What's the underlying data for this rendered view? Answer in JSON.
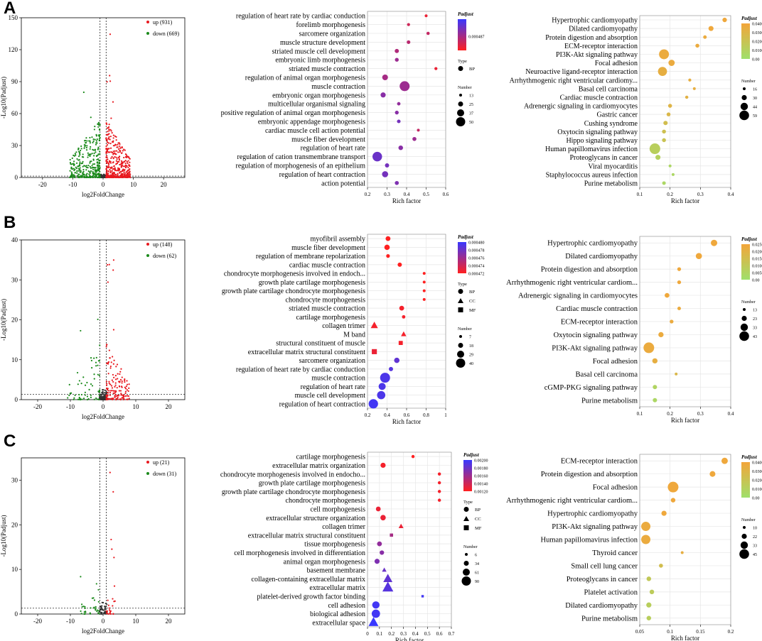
{
  "figure": {
    "panel_labels": [
      "A",
      "B",
      "C"
    ]
  },
  "chart_data": [
    {
      "panel": "A",
      "type": "scatter",
      "subtype": "volcano",
      "xlabel": "log2FoldChange",
      "ylabel": "-Log10(Padjust)",
      "xlim": [
        -27,
        27
      ],
      "ylim": [
        0,
        150
      ],
      "xticks": [
        -20,
        -10,
        0,
        10,
        20
      ],
      "yticks": [
        0,
        30,
        60,
        90,
        120,
        150
      ],
      "threshold_x": [
        -1,
        1
      ],
      "threshold_y": 1.3,
      "legend": [
        {
          "label": "up (931)",
          "color": "#e8191f"
        },
        {
          "label": "down (669)",
          "color": "#1b8a1b"
        }
      ],
      "up_count": 931,
      "down_count": 669,
      "cloud": {
        "up_xmax": 9,
        "down_xmin": -11,
        "ymax": 55
      }
    },
    {
      "panel": "A",
      "type": "scatter",
      "subtype": "go-bubble",
      "xlabel": "Rich factor",
      "xlim": [
        0.2,
        0.6
      ],
      "xticks": [
        0.2,
        0.3,
        0.4,
        0.5,
        0.6
      ],
      "terms": [
        "regulation of heart rate by cardiac conduction",
        "forelimb morphogenesis",
        "sarcomere organization",
        "muscle structure development",
        "striated muscle cell development",
        "embryonic limb morphogenesis",
        "striated muscle contraction",
        "regulation of animal organ morphogenesis",
        "muscle contraction",
        "embryonic organ morphogenesis",
        "multicellular organismal signaling",
        "positive regulation of animal organ morphogenesis",
        "embryonic appendage morphogenesis",
        "cardiac muscle cell action potential",
        "muscle fiber development",
        "regulation of heart rate",
        "regulation of cation transmembrane transport",
        "regulation of morphogenesis of an epithelium",
        "regulation of heart contraction",
        "action potential"
      ],
      "x": [
        0.5,
        0.41,
        0.51,
        0.41,
        0.35,
        0.35,
        0.55,
        0.29,
        0.39,
        0.28,
        0.36,
        0.35,
        0.36,
        0.46,
        0.44,
        0.37,
        0.25,
        0.3,
        0.29,
        0.35
      ],
      "size": [
        13,
        14,
        15,
        17,
        20,
        18,
        14,
        28,
        50,
        25,
        16,
        18,
        17,
        13,
        19,
        22,
        48,
        20,
        30,
        19
      ],
      "shape": [
        "BP",
        "BP",
        "BP",
        "BP",
        "BP",
        "BP",
        "BP",
        "BP",
        "BP",
        "BP",
        "BP",
        "BP",
        "BP",
        "BP",
        "BP",
        "BP",
        "BP",
        "BP",
        "BP",
        "BP"
      ],
      "color": [
        0.1,
        0.25,
        0.3,
        0.35,
        0.4,
        0.5,
        0.1,
        0.45,
        0.5,
        0.6,
        0.55,
        0.6,
        0.7,
        0.3,
        0.5,
        0.6,
        0.75,
        0.7,
        0.7,
        0.65
      ],
      "colorbar": {
        "title": "Padjust",
        "labels": [
          "0.000487"
        ],
        "top": "#3838ff",
        "bottom": "#ff2020"
      },
      "type_legend": {
        "title": "Type",
        "items": [
          "BP"
        ]
      },
      "size_legend": {
        "title": "Number",
        "values": [
          13,
          25,
          37,
          50
        ]
      }
    },
    {
      "panel": "A",
      "type": "scatter",
      "subtype": "kegg-bubble",
      "xlabel": "Rich factor",
      "xlim": [
        0.1,
        0.4
      ],
      "xticks": [
        0.1,
        0.2,
        0.3,
        0.4
      ],
      "terms": [
        "Hypertrophic cardiomyopathy",
        "Dilated cardiomyopathy",
        "Protein digestion and absorption",
        "ECM-receptor interaction",
        "PI3K-Akt signaling pathway",
        "Focal adhesion",
        "Neuroactive ligand-receptor interaction",
        "Arrhythmogenic right ventricular cardiomy...",
        "Basal cell carcinoma",
        "Cardiac muscle contraction",
        "Adrenergic signaling in cardiomyocytes",
        "Gastric cancer",
        "Cushing syndrome",
        "Oxytocin signaling pathway",
        "Hippo signaling pathway",
        "Human papillomavirus infection",
        "Proteoglycans in cancer",
        "Viral myocarditis",
        "Staphylococcus aureus infection",
        "Purine metabolism"
      ],
      "x": [
        0.38,
        0.335,
        0.315,
        0.29,
        0.18,
        0.205,
        0.175,
        0.265,
        0.28,
        0.255,
        0.2,
        0.195,
        0.185,
        0.18,
        0.18,
        0.15,
        0.16,
        0.2,
        0.21,
        0.18
      ],
      "size": [
        25,
        28,
        20,
        22,
        55,
        35,
        50,
        17,
        16,
        18,
        22,
        22,
        24,
        22,
        22,
        59,
        28,
        16,
        16,
        20
      ],
      "shape": [
        "BP",
        "BP",
        "BP",
        "BP",
        "BP",
        "BP",
        "BP",
        "BP",
        "BP",
        "BP",
        "BP",
        "BP",
        "BP",
        "BP",
        "BP",
        "BP",
        "BP",
        "BP",
        "BP",
        "BP"
      ],
      "color": [
        0.95,
        0.95,
        0.9,
        0.9,
        0.9,
        0.9,
        0.85,
        0.85,
        0.85,
        0.8,
        0.75,
        0.7,
        0.6,
        0.55,
        0.5,
        0.3,
        0.25,
        0.15,
        0.15,
        0.15
      ],
      "colorbar": {
        "title": "Padjust",
        "labels": [
          "0.0400",
          "0.0300",
          "0.0200",
          "0.0100",
          "0.00"
        ],
        "top": "#f3a53a",
        "bottom": "#9fe06b"
      },
      "size_legend": {
        "title": "Number",
        "values": [
          16,
          30,
          44,
          59
        ]
      }
    },
    {
      "panel": "B",
      "type": "scatter",
      "subtype": "volcano",
      "xlabel": "log2FoldChange",
      "ylabel": "-Log10(Padjust)",
      "xlim": [
        -25,
        25
      ],
      "ylim": [
        0,
        40
      ],
      "xticks": [
        -20,
        -10,
        0,
        10,
        20
      ],
      "yticks": [
        0,
        10,
        20,
        30,
        40
      ],
      "threshold_x": [
        -1,
        1
      ],
      "threshold_y": 1.3,
      "legend": [
        {
          "label": "up (148)",
          "color": "#e8191f"
        },
        {
          "label": "down (62)",
          "color": "#1b8a1b"
        }
      ],
      "up_count": 148,
      "down_count": 62,
      "cloud": {
        "up_xmax": 8,
        "down_xmin": -11,
        "ymax": 14
      }
    },
    {
      "panel": "B",
      "type": "scatter",
      "subtype": "go-bubble",
      "xlabel": "Rich factor",
      "xlim": [
        0.2,
        1
      ],
      "xticks": [
        0.2,
        0.4,
        0.6,
        0.8,
        1
      ],
      "tick_labels": [
        "0.2",
        "0.4",
        "0.6",
        "0.8",
        "1"
      ],
      "terms": [
        "myofibril assembly",
        "muscle fiber development",
        "regulation of membrane repolarization",
        "cardiac muscle contraction",
        "chondrocyte morphogenesis involved in endoch...",
        "growth plate cartilage morphogenesis",
        "growth plate cartilage chondrocyte morphogenesis",
        "chondrocyte morphogenesis",
        "striated muscle contraction",
        "cartilage morphogenesis",
        "collagen trimer",
        "M band",
        "structural constituent of muscle",
        "extracellular matrix structural constituent",
        "sarcomere organization",
        "regulation of heart rate by cardiac conduction",
        "muscle contraction",
        "regulation of heart rate",
        "muscle cell development",
        "regulation of heart contraction"
      ],
      "x": [
        0.41,
        0.4,
        0.41,
        0.53,
        0.78,
        0.78,
        0.78,
        0.78,
        0.55,
        0.57,
        0.27,
        0.57,
        0.54,
        0.27,
        0.5,
        0.44,
        0.38,
        0.35,
        0.34,
        0.26
      ],
      "size": [
        14,
        16,
        10,
        12,
        7,
        7,
        7,
        7,
        14,
        9,
        20,
        14,
        14,
        18,
        16,
        12,
        32,
        22,
        26,
        30
      ],
      "shape": [
        "BP",
        "BP",
        "BP",
        "BP",
        "BP",
        "BP",
        "BP",
        "BP",
        "BP",
        "BP",
        "CC",
        "CC",
        "MF",
        "MF",
        "BP",
        "BP",
        "BP",
        "BP",
        "BP",
        "BP"
      ],
      "color": [
        0.0,
        0.0,
        0.0,
        0.0,
        0.0,
        0.0,
        0.0,
        0.0,
        0.05,
        0.05,
        0.05,
        0.05,
        0.05,
        0.1,
        0.8,
        0.85,
        0.9,
        0.9,
        0.9,
        0.95
      ],
      "colorbar": {
        "title": "Padjust",
        "labels": [
          "0.000480",
          "0.000478",
          "0.000476",
          "0.000474",
          "0.000472"
        ],
        "top": "#3838ff",
        "bottom": "#ff2020"
      },
      "type_legend": {
        "title": "Type",
        "items": [
          "BP",
          "CC",
          "MF"
        ]
      },
      "size_legend": {
        "title": "Number",
        "values": [
          7,
          18,
          29,
          40
        ]
      }
    },
    {
      "panel": "B",
      "type": "scatter",
      "subtype": "kegg-bubble",
      "xlabel": "Rich factor",
      "xlim": [
        0.1,
        0.4
      ],
      "xticks": [
        0.1,
        0.2,
        0.3,
        0.4
      ],
      "terms": [
        "Hypertrophic cardiomyopathy",
        "Dilated cardiomyopathy",
        "Protein digestion and absorption",
        "Arrhythmogenic right ventricular cardiom...",
        "Adrenergic signaling in cardiomyocytes",
        "Cardiac muscle contraction",
        "ECM-receptor interaction",
        "Oxytocin signaling pathway",
        "PI3K-Akt signaling pathway",
        "Focal adhesion",
        "Basal cell carcinoma",
        "cGMP-PKG signaling pathway",
        "Purine metabolism"
      ],
      "x": [
        0.345,
        0.295,
        0.23,
        0.23,
        0.19,
        0.23,
        0.205,
        0.17,
        0.13,
        0.15,
        0.22,
        0.15,
        0.15
      ],
      "size": [
        25,
        24,
        14,
        14,
        18,
        13,
        14,
        20,
        43,
        20,
        10,
        16,
        16
      ],
      "shape": [
        "BP",
        "BP",
        "BP",
        "BP",
        "BP",
        "BP",
        "BP",
        "BP",
        "BP",
        "BP",
        "BP",
        "BP",
        "BP"
      ],
      "color": [
        0.95,
        0.95,
        0.95,
        0.95,
        0.95,
        0.9,
        0.9,
        0.9,
        0.9,
        0.85,
        0.7,
        0.2,
        0.15
      ],
      "colorbar": {
        "title": "Padjust",
        "labels": [
          "0.0250",
          "0.0200",
          "0.0150",
          "0.0100",
          "0.00500",
          "0.00"
        ],
        "top": "#f3a53a",
        "bottom": "#9fe06b"
      },
      "size_legend": {
        "title": "Number",
        "values": [
          13,
          23,
          33,
          43
        ]
      }
    },
    {
      "panel": "C",
      "type": "scatter",
      "subtype": "volcano",
      "xlabel": "log2FoldChange",
      "ylabel": "-Log10(Padjust)",
      "xlim": [
        -25,
        25
      ],
      "ylim": [
        0,
        35
      ],
      "xticks": [
        -20,
        -10,
        0,
        10,
        20
      ],
      "yticks": [
        0,
        10,
        20,
        30
      ],
      "threshold_x": [
        -1,
        1
      ],
      "threshold_y": 1.3,
      "legend": [
        {
          "label": "up (21)",
          "color": "#e8191f"
        },
        {
          "label": "down (31)",
          "color": "#1b8a1b"
        }
      ],
      "up_count": 21,
      "down_count": 31,
      "cloud": {
        "up_xmax": 4,
        "down_xmin": -7,
        "ymax": 6
      }
    },
    {
      "panel": "C",
      "type": "scatter",
      "subtype": "go-bubble",
      "xlabel": "Rich factor",
      "xlim": [
        0,
        0.7
      ],
      "xticks": [
        0,
        0.1,
        0.2,
        0.3,
        0.4,
        0.5,
        0.6,
        0.7
      ],
      "tick_labels": [
        "0",
        "0.1",
        "0.2",
        "0.3",
        "0.4",
        "0.5",
        "0.6",
        "0.7"
      ],
      "terms": [
        "cartilage morphogenesis",
        "extracellular matrix organization",
        "chondrocyte morphogenesis involved in endocho...",
        "growth plate cartilage morphogenesis",
        "growth plate cartilage chondrocyte morphogenesis",
        "chondrocyte morphogenesis",
        "cell morphogenesis",
        "extracellular structure organization",
        "collagen trimer",
        "extracellular matrix structural constituent",
        "tissue morphogenesis",
        "cell morphogenesis involved in differentiation",
        "animal organ morphogenesis",
        "basement membrane",
        "collagen-containing extracellular matrix",
        "extracellular matrix",
        "platelet-derived growth factor binding",
        "cell adhesion",
        "biological adhesion",
        "extracellular space"
      ],
      "x": [
        0.38,
        0.13,
        0.6,
        0.6,
        0.6,
        0.6,
        0.09,
        0.13,
        0.28,
        0.2,
        0.1,
        0.12,
        0.08,
        0.14,
        0.17,
        0.17,
        0.46,
        0.07,
        0.07,
        0.05
      ],
      "size": [
        8,
        20,
        8,
        8,
        8,
        8,
        18,
        22,
        16,
        12,
        18,
        16,
        20,
        14,
        40,
        50,
        6,
        34,
        40,
        44
      ],
      "shape": [
        "BP",
        "BP",
        "BP",
        "BP",
        "BP",
        "BP",
        "BP",
        "BP",
        "CC",
        "MF",
        "BP",
        "BP",
        "BP",
        "CC",
        "CC",
        "CC",
        "MF",
        "BP",
        "BP",
        "CC"
      ],
      "color": [
        0.0,
        0.05,
        0.05,
        0.05,
        0.05,
        0.05,
        0.1,
        0.1,
        0.1,
        0.45,
        0.55,
        0.6,
        0.65,
        0.75,
        0.8,
        0.85,
        0.95,
        0.95,
        0.95,
        1.0
      ],
      "colorbar": {
        "title": "Padjust",
        "labels": [
          "0.00200",
          "0.00180",
          "0.00160",
          "0.00140",
          "0.00120"
        ],
        "top": "#3838ff",
        "bottom": "#ff2020"
      },
      "type_legend": {
        "title": "Type",
        "items": [
          "BP",
          "CC",
          "MF"
        ]
      },
      "size_legend": {
        "title": "Number",
        "values": [
          6,
          34,
          61,
          90
        ]
      }
    },
    {
      "panel": "C",
      "type": "scatter",
      "subtype": "kegg-bubble",
      "xlabel": "Rich factor",
      "xlim": [
        0.05,
        0.2
      ],
      "xticks": [
        0.05,
        0.1,
        0.15,
        0.2
      ],
      "terms": [
        "ECM-receptor interaction",
        "Protein digestion and absorption",
        "Focal adhesion",
        "Arrhythmogenic right ventricular cardiom...",
        "Hypertrophic cardiomyopathy",
        "PI3K-Akt signaling pathway",
        "Human papillomavirus infection",
        "Thyroid cancer",
        "Small cell lung cancer",
        "Proteoglycans in cancer",
        "Platelet activation",
        "Dilated cardiomyopathy",
        "Purine metabolism"
      ],
      "x": [
        0.19,
        0.17,
        0.105,
        0.105,
        0.09,
        0.06,
        0.06,
        0.12,
        0.085,
        0.065,
        0.07,
        0.065,
        0.065
      ],
      "size": [
        20,
        18,
        35,
        14,
        16,
        30,
        30,
        8,
        12,
        14,
        14,
        16,
        14
      ],
      "shape": [
        "BP",
        "BP",
        "BP",
        "BP",
        "BP",
        "BP",
        "BP",
        "BP",
        "BP",
        "BP",
        "BP",
        "BP",
        "BP"
      ],
      "color": [
        0.95,
        0.95,
        0.95,
        0.95,
        0.95,
        0.9,
        0.9,
        0.85,
        0.6,
        0.4,
        0.35,
        0.3,
        0.3
      ],
      "colorbar": {
        "title": "Padjust",
        "labels": [
          "0.0400",
          "0.0300",
          "0.0200",
          "0.0100",
          "0.00"
        ],
        "top": "#f3a53a",
        "bottom": "#9fe06b"
      },
      "size_legend": {
        "title": "Number",
        "values": [
          10,
          22,
          33,
          45
        ]
      }
    }
  ]
}
